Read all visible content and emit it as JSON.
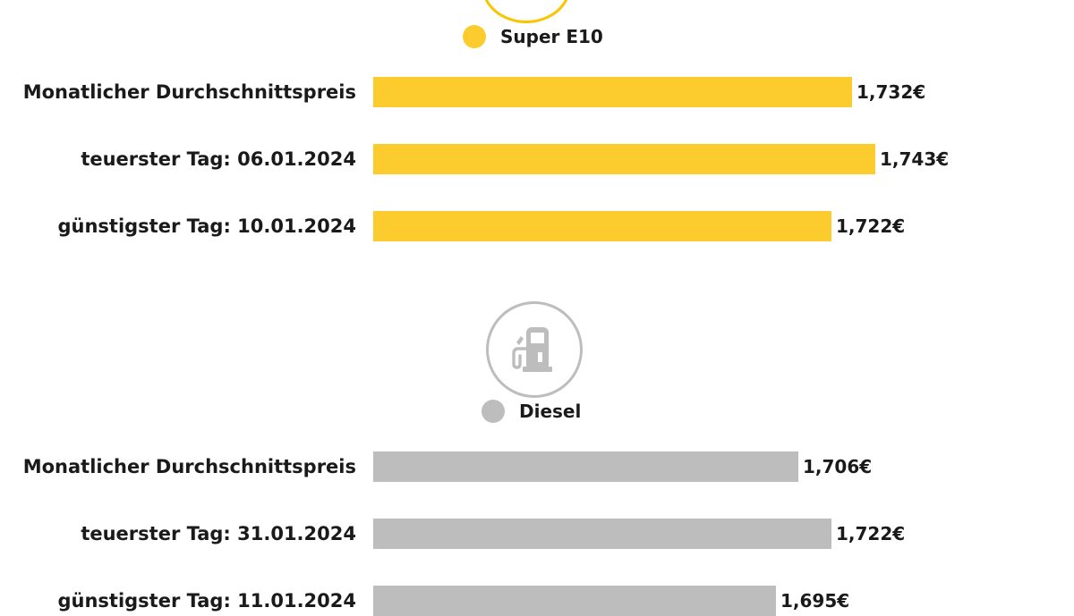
{
  "chart_data": [
    {
      "type": "bar",
      "orientation": "horizontal",
      "series_name": "Super E10",
      "color": "#fccb2e",
      "icon": "fuel-pump-icon",
      "categories": [
        "Monatlicher Durchschnittspreis",
        "teuerster Tag: 06.01.2024",
        "günstigster Tag: 10.01.2024"
      ],
      "values": [
        1.732,
        1.743,
        1.722
      ],
      "value_labels": [
        "1,732€",
        "1,743€",
        "1,722€"
      ],
      "xlim": [
        1.5,
        1.765
      ]
    },
    {
      "type": "bar",
      "orientation": "horizontal",
      "series_name": "Diesel",
      "color": "#bdbdbd",
      "icon": "fuel-pump-icon",
      "categories": [
        "Monatlicher Durchschnittspreis",
        "teuerster Tag: 31.01.2024",
        "günstigster Tag: 11.01.2024"
      ],
      "values": [
        1.706,
        1.722,
        1.695
      ],
      "value_labels": [
        "1,706€",
        "1,722€",
        "1,695€"
      ],
      "xlim": [
        1.5,
        1.765
      ]
    }
  ]
}
